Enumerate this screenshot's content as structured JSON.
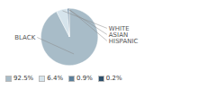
{
  "chart_data": {
    "type": "pie",
    "categories": [
      "BLACK",
      "WHITE",
      "ASIAN",
      "HISPANIC"
    ],
    "values": [
      92.5,
      6.4,
      0.9,
      0.2
    ],
    "value_labels": [
      "92.5%",
      "6.4%",
      "0.9%",
      "0.2%"
    ],
    "colors": [
      "#a8bcc8",
      "#d6e4ec",
      "#5b7f9b",
      "#2d4f6b"
    ],
    "legend": "bottom"
  }
}
